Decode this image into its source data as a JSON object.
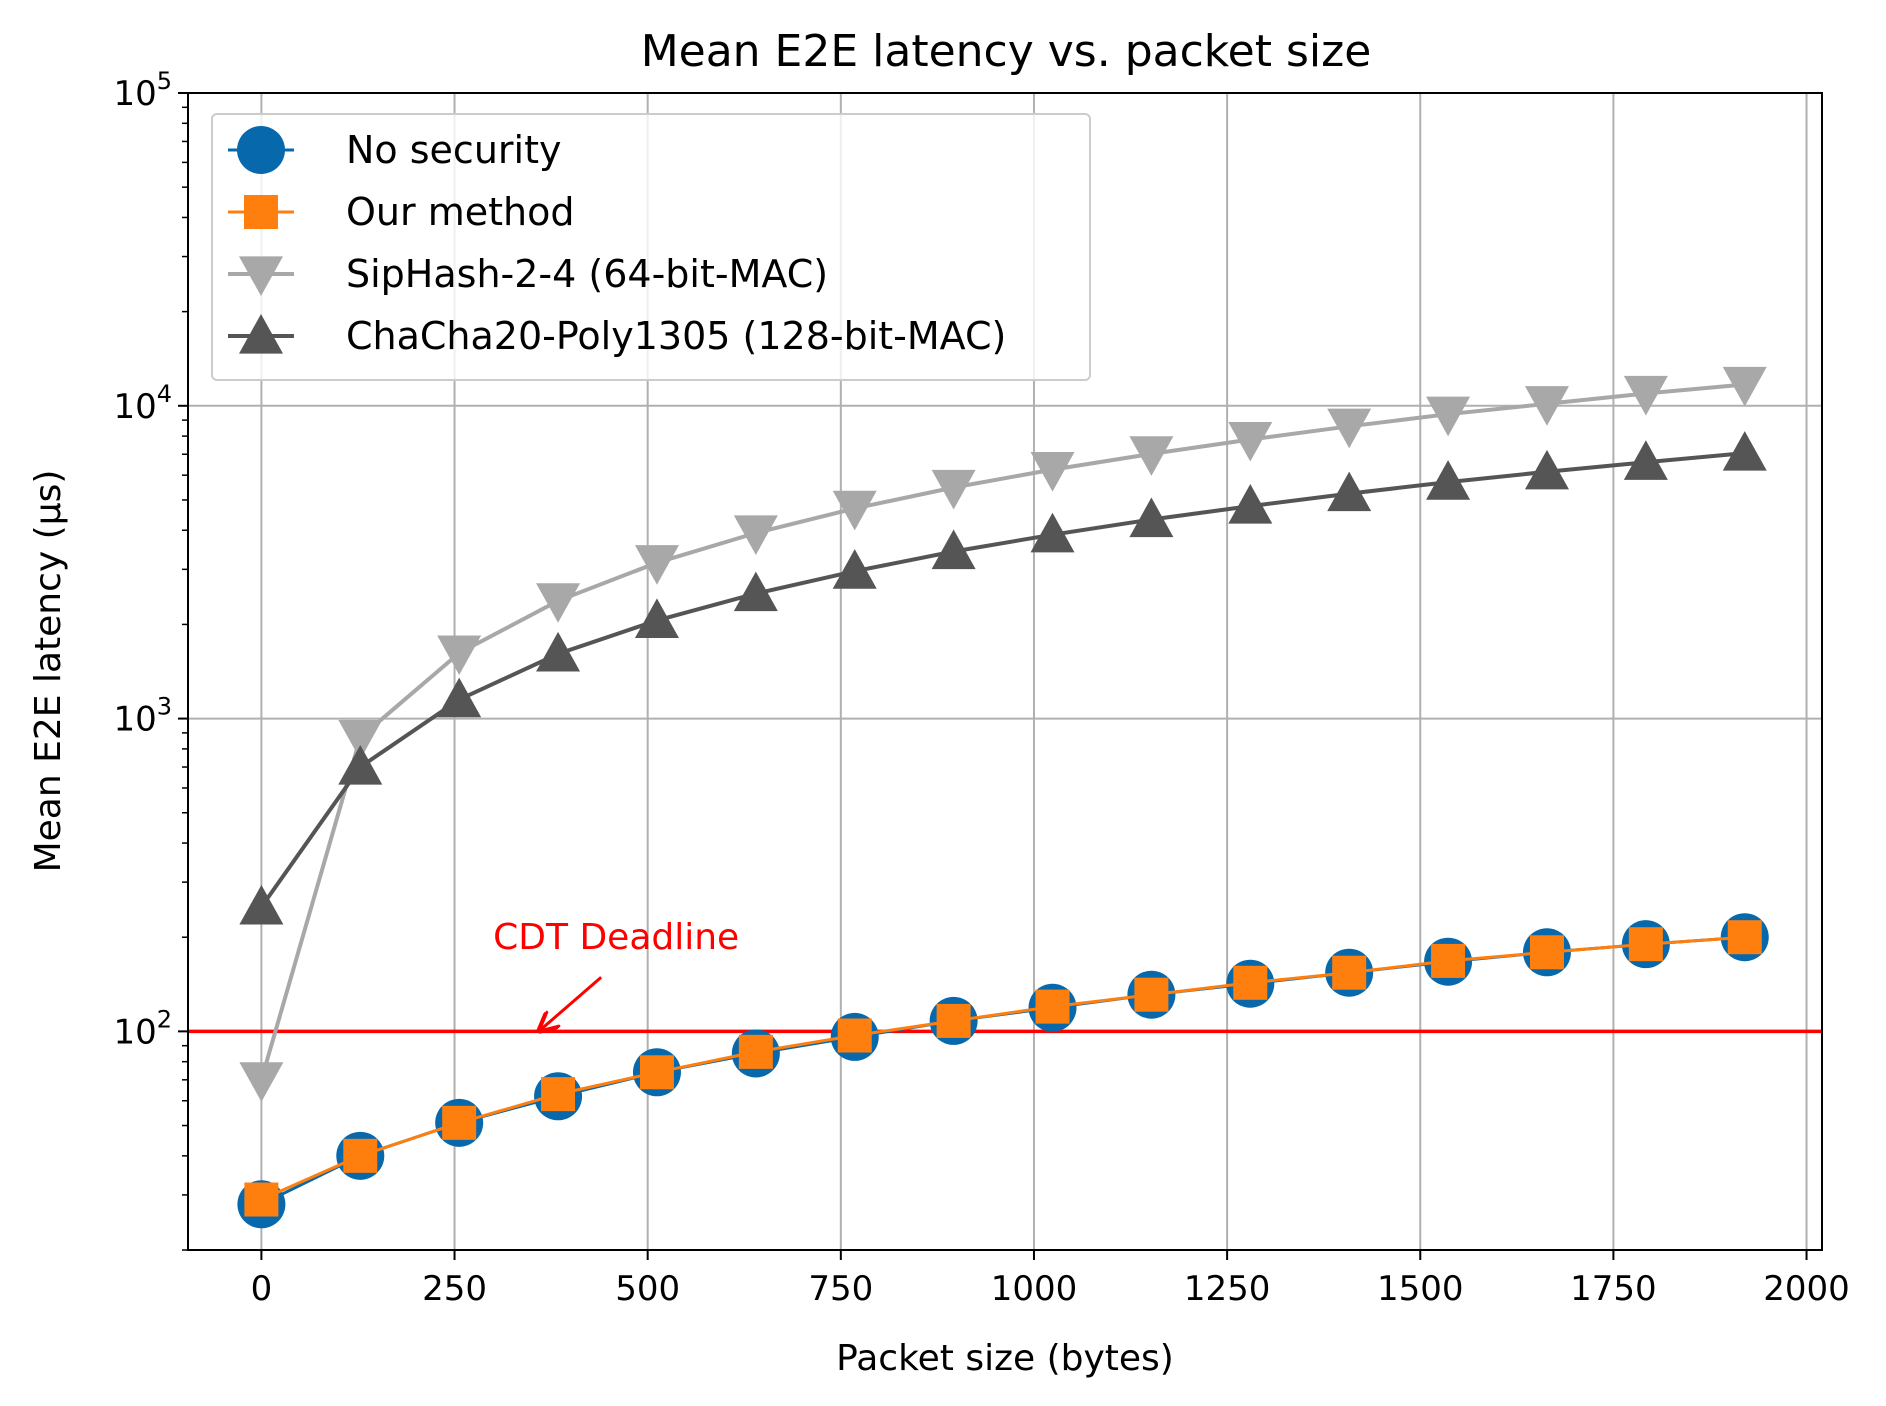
{
  "chart_data": {
    "type": "line",
    "title": "Mean E2E latency vs. packet size",
    "xlabel": "Packet size (bytes)",
    "ylabel": "Mean E2E latency (µs)",
    "xlim": [
      -95,
      2020
    ],
    "ylim": [
      20,
      100000
    ],
    "yscale": "log",
    "grid": true,
    "legend_position": "top-left",
    "x_ticks": [
      0,
      250,
      500,
      750,
      1000,
      1250,
      1500,
      1750,
      2000
    ],
    "y_ticks": [
      100,
      1000,
      10000,
      100000
    ],
    "x": [
      0,
      128,
      256,
      384,
      512,
      640,
      768,
      896,
      1024,
      1152,
      1280,
      1408,
      1536,
      1664,
      1792,
      1920
    ],
    "series": [
      {
        "name": "No security",
        "color": "#0868ac",
        "marker": "circle",
        "values": [
          28,
          40,
          51,
          62,
          74,
          85,
          96,
          108,
          119,
          131,
          142,
          154,
          167,
          179,
          190,
          200
        ]
      },
      {
        "name": "Our method",
        "color": "#ff7f0e",
        "marker": "square",
        "values": [
          29,
          40,
          51,
          63,
          74,
          86,
          97,
          108,
          120,
          131,
          143,
          154,
          168,
          179,
          190,
          200
        ]
      },
      {
        "name": "SipHash-2-4 (64-bit-MAC)",
        "color": "#a8a8a8",
        "marker": "triangle-down",
        "values": [
          70,
          870,
          1620,
          2380,
          3150,
          3920,
          4700,
          5480,
          6250,
          7020,
          7800,
          8600,
          9400,
          10150,
          10950,
          11700
        ]
      },
      {
        "name": "ChaCha20-Poly1305 (128-bit-MAC)",
        "color": "#555555",
        "marker": "triangle-up",
        "values": [
          250,
          700,
          1150,
          1610,
          2060,
          2510,
          2960,
          3420,
          3870,
          4330,
          4780,
          5240,
          5700,
          6150,
          6600,
          7060
        ]
      }
    ],
    "reference_line": {
      "y": 100,
      "color": "#ff0000"
    },
    "annotation": {
      "text": "CDT Deadline",
      "color": "#ff0000",
      "text_x": 300,
      "text_y": 200,
      "arrow_to_x": 360,
      "arrow_to_y": 102
    }
  }
}
